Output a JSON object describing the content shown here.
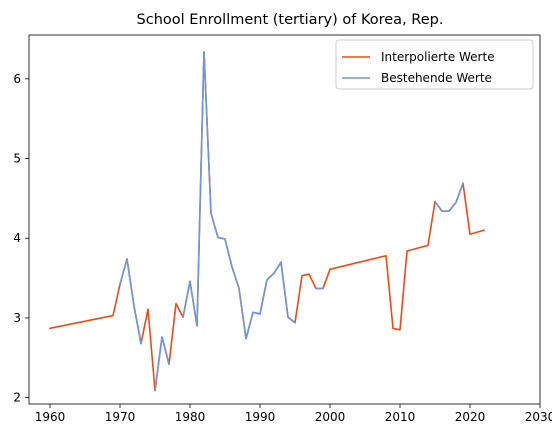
{
  "chart_data": {
    "type": "line",
    "title": "School Enrollment (tertiary) of Korea, Rep.",
    "xlabel": "",
    "ylabel": "",
    "xlim": [
      1957,
      2030
    ],
    "ylim": [
      1.92,
      6.55
    ],
    "xticks": [
      1960,
      1970,
      1980,
      1990,
      2000,
      2010,
      2020,
      2030
    ],
    "yticks": [
      2,
      3,
      4,
      5,
      6
    ],
    "grid": false,
    "legend_position": "top-right",
    "series": [
      {
        "name": "Interpolierte Werte",
        "color": "#ee4a12",
        "points": [
          [
            1960,
            2.87
          ],
          [
            1969,
            3.03
          ],
          [
            1970,
            3.42
          ],
          [
            1971,
            3.74
          ],
          [
            1972,
            3.15
          ],
          [
            1973,
            2.68
          ],
          [
            1974,
            3.11
          ],
          [
            1975,
            2.09
          ],
          [
            1976,
            2.76
          ],
          [
            1977,
            2.42
          ],
          [
            1978,
            3.18
          ],
          [
            1979,
            3.01
          ],
          [
            1980,
            3.46
          ],
          [
            1981,
            2.9
          ],
          [
            1982,
            6.34
          ],
          [
            1983,
            4.31
          ],
          [
            1984,
            4.01
          ],
          [
            1985,
            3.99
          ],
          [
            1986,
            3.64
          ],
          [
            1987,
            3.37
          ],
          [
            1988,
            2.74
          ],
          [
            1989,
            3.07
          ],
          [
            1990,
            3.05
          ],
          [
            1991,
            3.48
          ],
          [
            1992,
            3.56
          ],
          [
            1993,
            3.7
          ],
          [
            1994,
            3.01
          ],
          [
            1995,
            2.94
          ],
          [
            1996,
            3.53
          ],
          [
            1997,
            3.55
          ],
          [
            1998,
            3.37
          ],
          [
            1999,
            3.37
          ],
          [
            2000,
            3.61
          ],
          [
            2008,
            3.78
          ],
          [
            2009,
            2.87
          ],
          [
            2010,
            2.85
          ],
          [
            2011,
            3.84
          ],
          [
            2014,
            3.91
          ],
          [
            2015,
            4.46
          ],
          [
            2016,
            4.34
          ],
          [
            2017,
            4.34
          ],
          [
            2018,
            4.45
          ],
          [
            2019,
            4.69
          ],
          [
            2020,
            4.05
          ],
          [
            2022,
            4.1
          ]
        ]
      },
      {
        "name": "Bestehende Werte",
        "color": "#6a97e0",
        "segments": [
          [
            [
              1970,
              3.42
            ],
            [
              1971,
              3.74
            ],
            [
              1972,
              3.15
            ],
            [
              1973,
              2.68
            ]
          ],
          [
            [
              1975,
              2.09
            ],
            [
              1976,
              2.76
            ],
            [
              1977,
              2.42
            ]
          ],
          [
            [
              1979,
              3.01
            ],
            [
              1980,
              3.46
            ],
            [
              1981,
              2.9
            ],
            [
              1982,
              6.34
            ],
            [
              1983,
              4.31
            ],
            [
              1984,
              4.01
            ],
            [
              1985,
              3.99
            ],
            [
              1986,
              3.64
            ],
            [
              1987,
              3.37
            ],
            [
              1988,
              2.74
            ],
            [
              1989,
              3.07
            ],
            [
              1990,
              3.05
            ],
            [
              1991,
              3.48
            ],
            [
              1992,
              3.56
            ],
            [
              1993,
              3.7
            ],
            [
              1994,
              3.01
            ],
            [
              1995,
              2.94
            ]
          ],
          [
            [
              1998,
              3.37
            ],
            [
              1999,
              3.37
            ]
          ],
          [
            [
              2015,
              4.46
            ],
            [
              2016,
              4.34
            ],
            [
              2017,
              4.34
            ],
            [
              2018,
              4.45
            ],
            [
              2019,
              4.69
            ]
          ]
        ]
      }
    ]
  }
}
